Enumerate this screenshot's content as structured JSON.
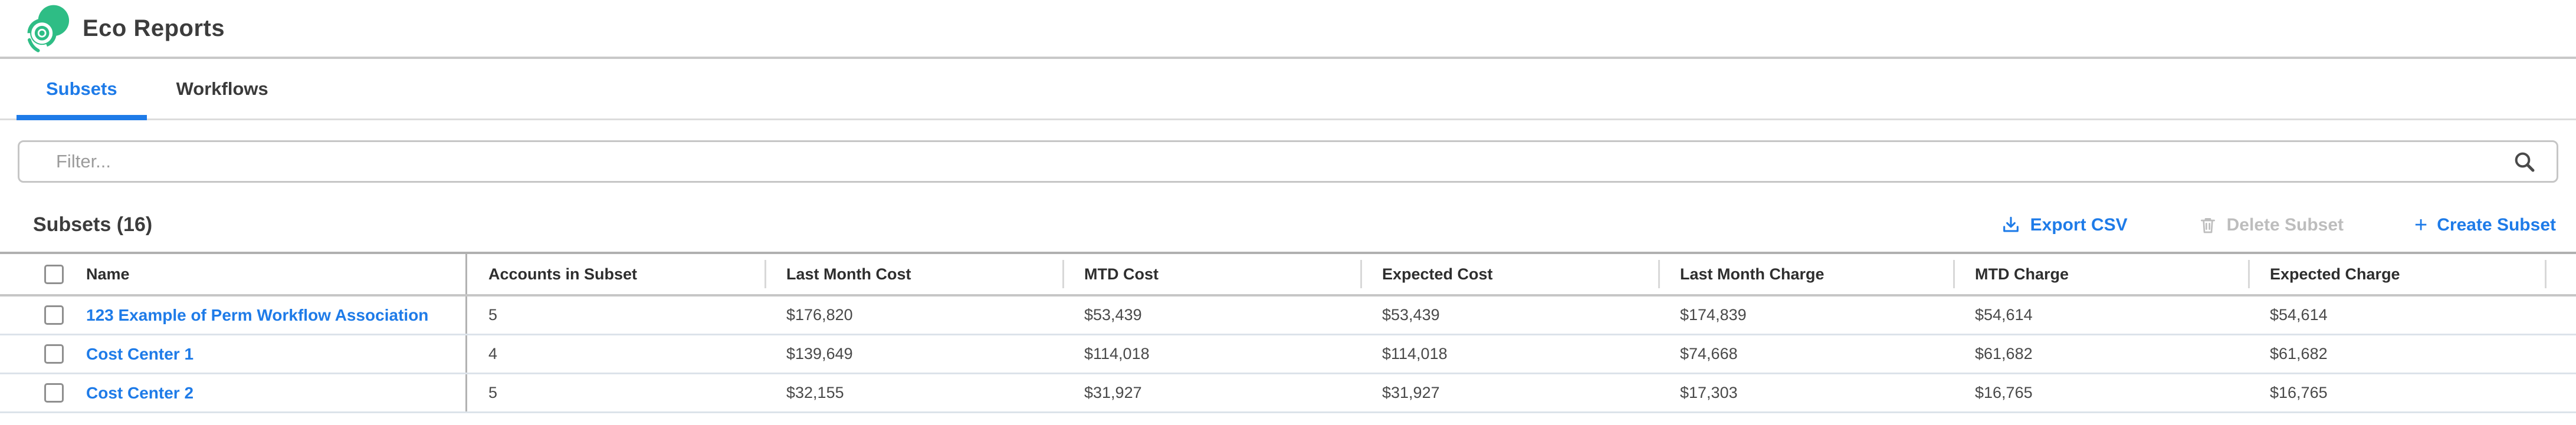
{
  "app": {
    "title": "Eco Reports",
    "logo_icon": "eco-swirl-icon"
  },
  "tabs": {
    "subsets": "Subsets",
    "workflows": "Workflows",
    "active_tab": "Subsets"
  },
  "filter": {
    "placeholder": "Filter...",
    "value": "",
    "icon": "search-icon"
  },
  "section": {
    "heading": "Subsets (16)",
    "count": 16
  },
  "toolbar": {
    "export_csv": {
      "label": "Export CSV",
      "icon": "download-icon",
      "enabled": true
    },
    "delete_subset": {
      "label": "Delete Subset",
      "icon": "trash-icon",
      "enabled": false
    },
    "create_subset": {
      "label": "Create Subset",
      "icon": "plus-icon",
      "enabled": true
    }
  },
  "table": {
    "columns": {
      "name": "Name",
      "accounts": "Accounts in Subset",
      "last_month_cost": "Last Month Cost",
      "mtd_cost": "MTD Cost",
      "expected_cost": "Expected Cost",
      "last_month_charge": "Last Month Charge",
      "mtd_charge": "MTD Charge",
      "expected_charge": "Expected Charge"
    },
    "rows": [
      [
        "123 Example of Perm Workflow Association",
        "5",
        "$176,820",
        "$53,439",
        "$53,439",
        "$174,839",
        "$54,614",
        "$54,614"
      ],
      [
        "Cost Center 1",
        "4",
        "$139,649",
        "$114,018",
        "$114,018",
        "$74,668",
        "$61,682",
        "$61,682"
      ],
      [
        "Cost Center 2",
        "5",
        "$32,155",
        "$31,927",
        "$31,927",
        "$17,303",
        "$16,765",
        "$16,765"
      ]
    ]
  },
  "colors": {
    "brand_green": "#2ebd85",
    "accent_blue": "#1e7be8",
    "disabled_gray": "#bdbdbd"
  }
}
